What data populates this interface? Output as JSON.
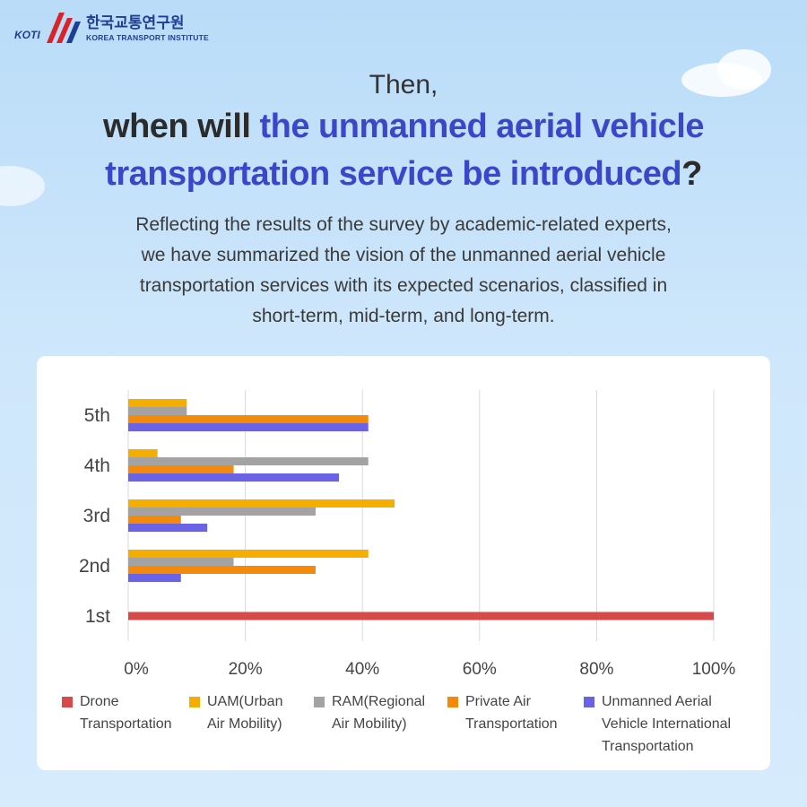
{
  "logo": {
    "korean": "한국교통연구원",
    "english": "KOREA TRANSPORT INSTITUTE",
    "mark": "KOTI"
  },
  "heading": {
    "line0": "Then,",
    "line1_plain": "when will ",
    "line1_highlight": "the unmanned aerial vehicle",
    "line2_highlight": "transportation service be introduced",
    "line2_plain": "?"
  },
  "subtitle": {
    "lines": [
      "Reflecting the results of the survey by academic-related experts,",
      "we have summarized the vision of the unmanned aerial vehicle",
      "transportation services with its expected scenarios, classified in",
      "short-term, mid-term, and long-term."
    ]
  },
  "colors": {
    "accent_blue": "#3848c9",
    "drone": "#d84a4a",
    "uam": "#f5ad00",
    "ram": "#a3a3a3",
    "private": "#f58a0a",
    "international": "#6a63e6"
  },
  "chart_data": {
    "type": "bar",
    "orientation": "horizontal",
    "categories": [
      "5th",
      "4th",
      "3rd",
      "2nd",
      "1st"
    ],
    "xlim": [
      0,
      100
    ],
    "x_ticks": [
      "0%",
      "20%",
      "40%",
      "60%",
      "80%",
      "100%"
    ],
    "grid": "vertical",
    "legend_position": "bottom",
    "series": [
      {
        "name": "Drone Transportation",
        "legend_lines": [
          "Drone",
          "Transportation"
        ],
        "color": "#d84a4a",
        "values": [
          0,
          0,
          0,
          0,
          100
        ]
      },
      {
        "name": "UAM(Urban Air Mobility)",
        "legend_lines": [
          "UAM(Urban",
          "Air Mobility)"
        ],
        "color": "#f5ad00",
        "values": [
          10,
          5,
          45.5,
          41,
          0
        ]
      },
      {
        "name": "RAM(Regional Air Mobility)",
        "legend_lines": [
          "RAM(Regional",
          "Air Mobility)"
        ],
        "color": "#a3a3a3",
        "values": [
          10,
          41,
          32,
          18,
          0
        ]
      },
      {
        "name": "Private Air Transportation",
        "legend_lines": [
          "Private Air",
          "Transportation"
        ],
        "color": "#f58a0a",
        "values": [
          41,
          18,
          9,
          32,
          0
        ]
      },
      {
        "name": "Unmanned Aerial Vehicle International Transportation",
        "legend_lines": [
          "Unmanned Aerial",
          "Vehicle International",
          "Transportation"
        ],
        "color": "#6a63e6",
        "values": [
          41,
          36,
          13.5,
          9,
          0
        ]
      }
    ]
  }
}
